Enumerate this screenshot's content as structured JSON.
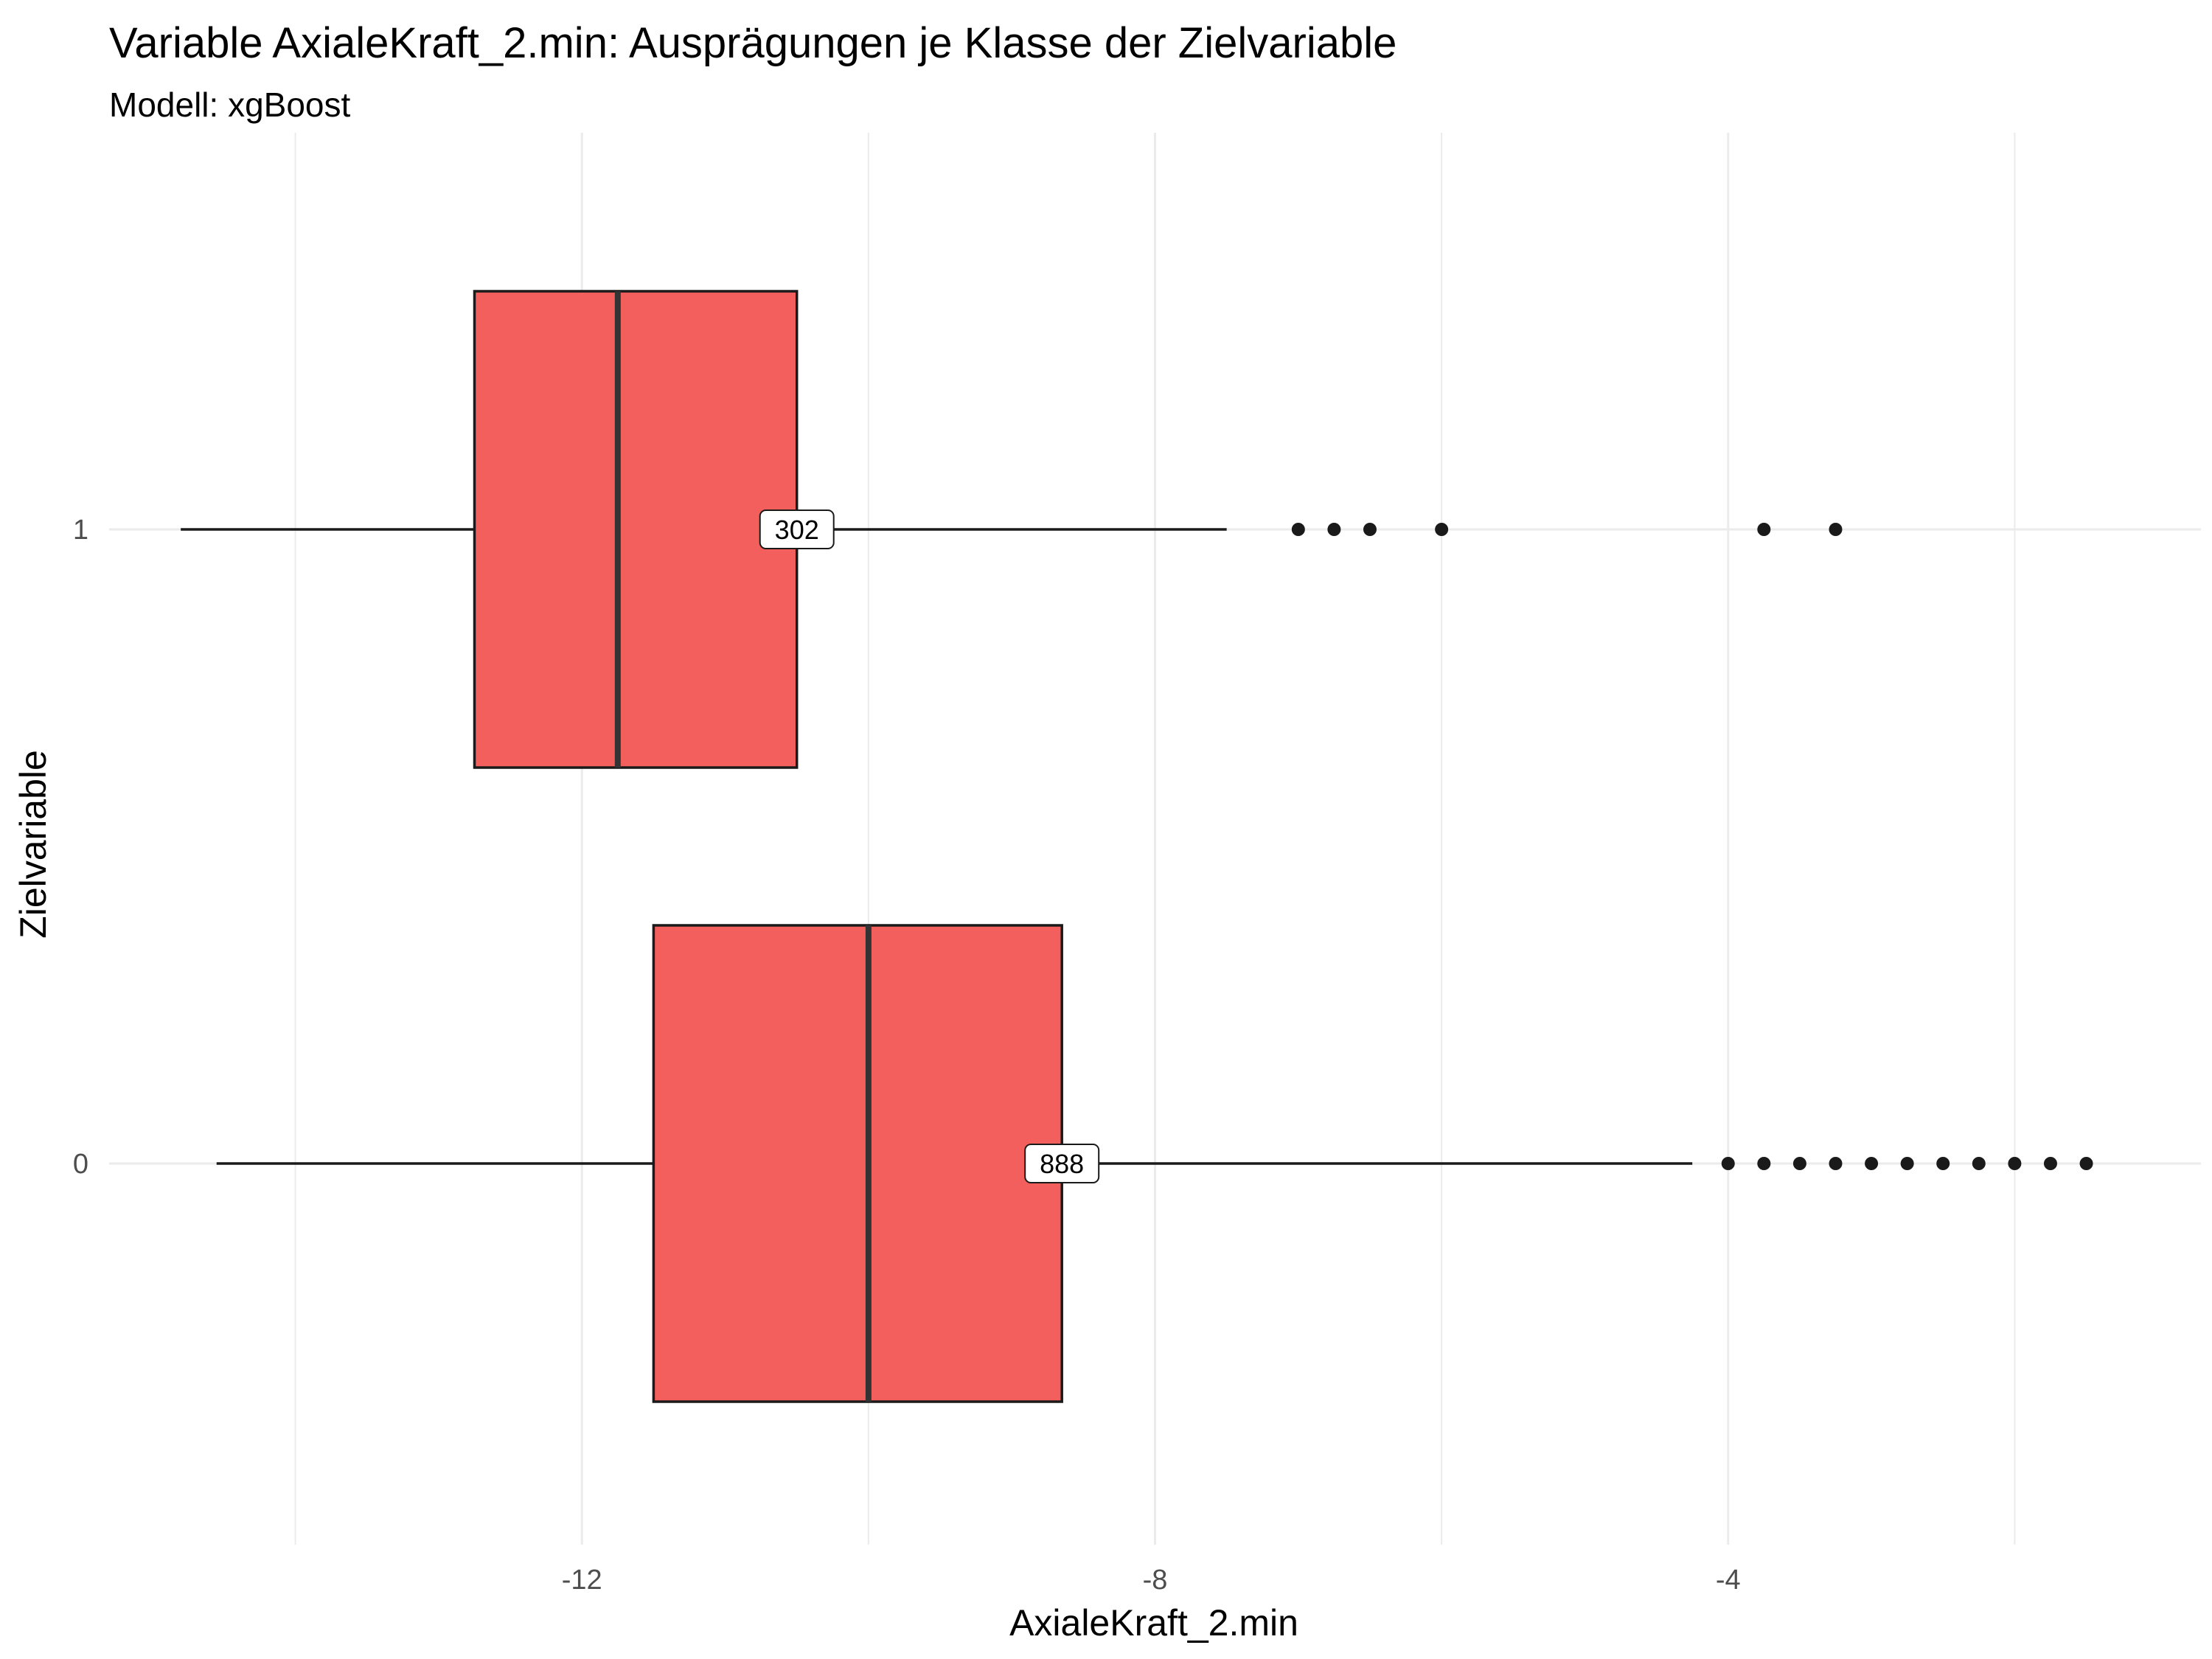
{
  "chart_data": {
    "type": "boxplot",
    "orientation": "horizontal",
    "title": "Variable AxialeKraft_2.min: Ausprägungen je Klasse der Zielvariable",
    "subtitle": "Modell: xgBoost",
    "xlabel": "AxialeKraft_2.min",
    "ylabel": "Zielvariable",
    "xlim": [
      -15.3,
      -0.7
    ],
    "x_ticks": [
      -12,
      -8,
      -4
    ],
    "x_minor_ticks": [
      -14,
      -10,
      -6,
      -2
    ],
    "categories": [
      "0",
      "1"
    ],
    "grid": true,
    "fill_color": "#F25F5C",
    "boxes": [
      {
        "category": "0",
        "whisker_low": -14.55,
        "q1": -11.5,
        "median": -10.0,
        "q3": -8.65,
        "whisker_high": -4.25,
        "outliers": [
          -4.0,
          -3.75,
          -3.5,
          -3.25,
          -3.0,
          -2.75,
          -2.5,
          -2.25,
          -2.0,
          -1.75,
          -1.5
        ],
        "count_label": "888"
      },
      {
        "category": "1",
        "whisker_low": -14.8,
        "q1": -12.75,
        "median": -11.75,
        "q3": -10.5,
        "whisker_high": -7.5,
        "outliers": [
          -7.0,
          -6.75,
          -6.5,
          -6.0,
          -3.75,
          -3.25
        ],
        "count_label": "302"
      }
    ]
  }
}
